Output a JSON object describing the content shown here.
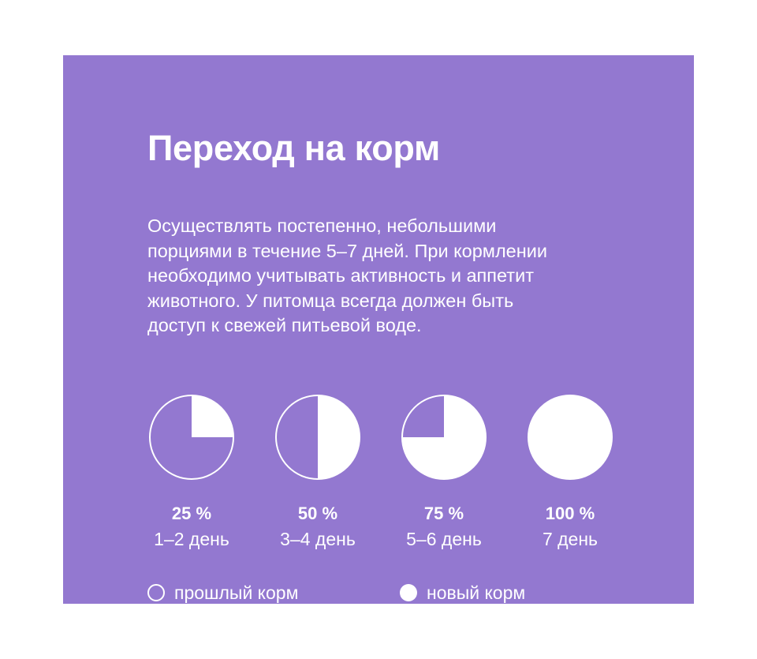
{
  "title": "Переход на корм",
  "description": [
    "Осуществлять постепенно, небольшими",
    "порциями в течение 5–7 дней. При кормлении",
    "необходимо учитывать активность и аппетит",
    "животного. У питомца всегда должен быть",
    "доступ к свежей питьевой воде."
  ],
  "colors": {
    "background": "#9378d0",
    "new_food": "#ffffff",
    "old_food": "#9378d0"
  },
  "schedule": [
    {
      "percent": "25 %",
      "days": "1–2 день",
      "new_fraction": 0.25
    },
    {
      "percent": "50 %",
      "days": "3–4 день",
      "new_fraction": 0.5
    },
    {
      "percent": "75 %",
      "days": "5–6 день",
      "new_fraction": 0.75
    },
    {
      "percent": "100 %",
      "days": "7 день",
      "new_fraction": 1.0
    }
  ],
  "legend": {
    "old_label": "прошлый корм",
    "new_label": "новый корм"
  }
}
